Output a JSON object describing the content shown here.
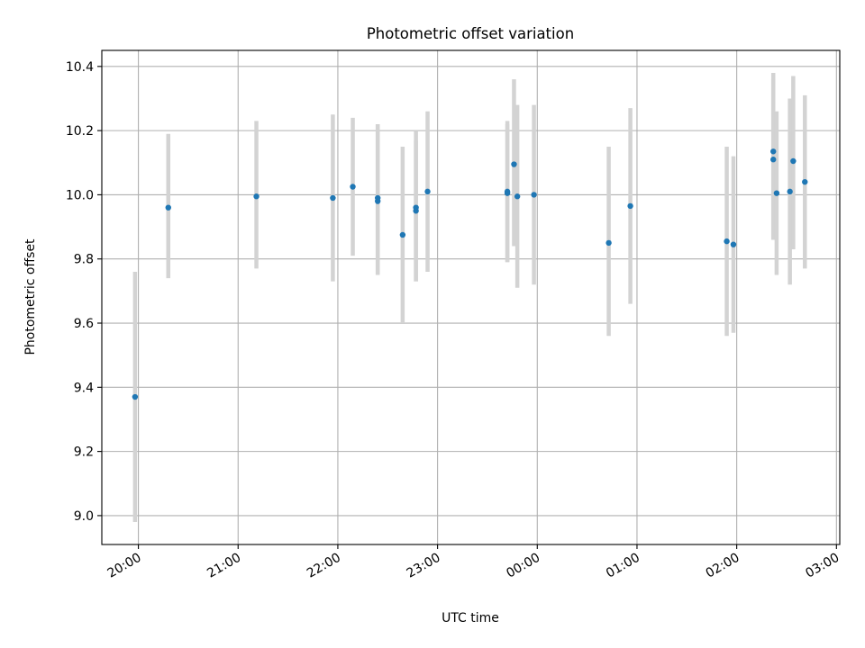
{
  "chart_data": {
    "type": "scatter",
    "title": "Photometric offset variation",
    "xlabel": "UTC time",
    "ylabel": "Photometric offset",
    "x_tick_labels": [
      "20:00",
      "21:00",
      "22:00",
      "23:00",
      "00:00",
      "01:00",
      "02:00",
      "03:00"
    ],
    "y_tick_labels": [
      "9.0",
      "9.2",
      "9.4",
      "9.6",
      "9.8",
      "10.0",
      "10.2",
      "10.4"
    ],
    "x_ticks": [
      "19:59",
      "20:59",
      "21:59",
      "22:59",
      "23:59",
      "00:59",
      "01:59",
      "02:59"
    ],
    "y_ticks": [
      9.0,
      9.2,
      9.4,
      9.6,
      9.8,
      10.0,
      10.2,
      10.4
    ],
    "xlim": [
      "19:37",
      "03:01"
    ],
    "ylim": [
      8.91,
      10.45
    ],
    "grid": true,
    "colors": {
      "marker": "#1f77b4",
      "errorbar": "#d3d3d3",
      "grid": "#b0b0b0"
    },
    "points": [
      {
        "x": "19:57",
        "y": 9.37,
        "low": 8.98,
        "high": 9.76
      },
      {
        "x": "20:17",
        "y": 9.96,
        "low": 9.74,
        "high": 10.19
      },
      {
        "x": "21:10",
        "y": 9.995,
        "low": 9.77,
        "high": 10.23
      },
      {
        "x": "21:56",
        "y": 9.99,
        "low": 9.73,
        "high": 10.25
      },
      {
        "x": "22:08",
        "y": 10.025,
        "low": 9.81,
        "high": 10.24
      },
      {
        "x": "22:23",
        "y": 9.98,
        "low": 9.75,
        "high": 10.22
      },
      {
        "x": "22:23",
        "y": 9.99,
        "low": 9.75,
        "high": 10.22
      },
      {
        "x": "22:38",
        "y": 9.875,
        "low": 9.6,
        "high": 10.15
      },
      {
        "x": "22:46",
        "y": 9.95,
        "low": 9.73,
        "high": 10.17
      },
      {
        "x": "22:46",
        "y": 9.96,
        "low": 9.73,
        "high": 10.2
      },
      {
        "x": "22:53",
        "y": 10.01,
        "low": 9.76,
        "high": 10.26
      },
      {
        "x": "23:41",
        "y": 10.005,
        "low": 9.79,
        "high": 10.22
      },
      {
        "x": "23:41",
        "y": 10.01,
        "low": 9.79,
        "high": 10.23
      },
      {
        "x": "23:45",
        "y": 10.095,
        "low": 9.84,
        "high": 10.36
      },
      {
        "x": "23:47",
        "y": 9.995,
        "low": 9.71,
        "high": 10.28
      },
      {
        "x": "23:57",
        "y": 10.0,
        "low": 9.72,
        "high": 10.28
      },
      {
        "x": "00:42",
        "y": 9.85,
        "low": 9.56,
        "high": 10.15
      },
      {
        "x": "00:55",
        "y": 9.965,
        "low": 9.66,
        "high": 10.27
      },
      {
        "x": "01:53",
        "y": 9.855,
        "low": 9.56,
        "high": 10.15
      },
      {
        "x": "01:57",
        "y": 9.845,
        "low": 9.57,
        "high": 10.12
      },
      {
        "x": "02:21",
        "y": 10.11,
        "low": 9.86,
        "high": 10.38
      },
      {
        "x": "02:21",
        "y": 10.135,
        "low": 9.86,
        "high": 10.36
      },
      {
        "x": "02:23",
        "y": 10.005,
        "low": 9.75,
        "high": 10.26
      },
      {
        "x": "02:31",
        "y": 10.01,
        "low": 9.72,
        "high": 10.3
      },
      {
        "x": "02:33",
        "y": 10.105,
        "low": 9.83,
        "high": 10.37
      },
      {
        "x": "02:40",
        "y": 10.04,
        "low": 9.77,
        "high": 10.31
      }
    ]
  }
}
